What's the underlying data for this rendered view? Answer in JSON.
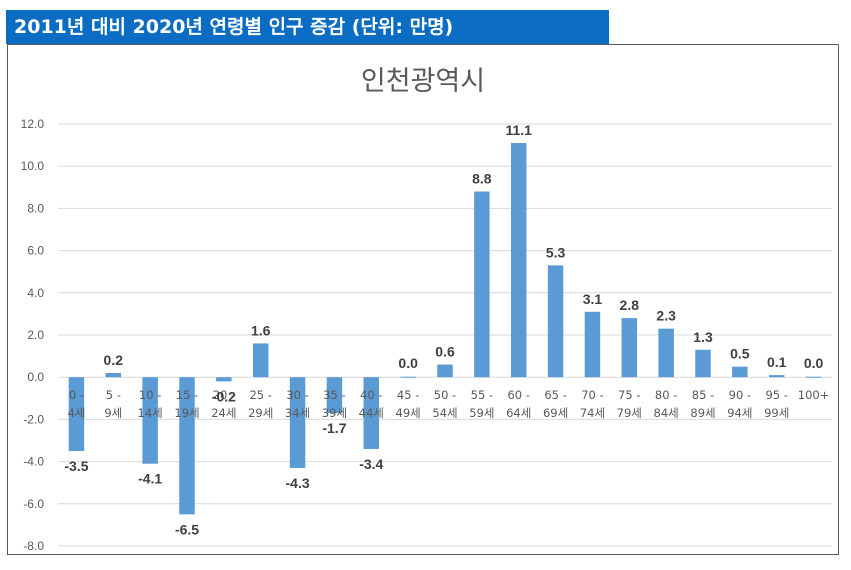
{
  "banner": {
    "title": "2011년 대비 2020년 연령별 인구 증감 (단위: 만명)"
  },
  "chart_data": {
    "type": "bar",
    "title": "인천광역시",
    "xlabel": "",
    "ylabel": "",
    "ylim": [
      -8.0,
      12.0
    ],
    "yticks": [
      "12.0",
      "10.0",
      "8.0",
      "6.0",
      "4.0",
      "2.0",
      "0.0",
      "-2.0",
      "-4.0",
      "-6.0",
      "-8.0"
    ],
    "categories": [
      [
        "0 -",
        "4세"
      ],
      [
        "5 -",
        "9세"
      ],
      [
        "10 -",
        "14세"
      ],
      [
        "15 -",
        "19세"
      ],
      [
        "20 -",
        "24세"
      ],
      [
        "25 -",
        "29세"
      ],
      [
        "30 -",
        "34세"
      ],
      [
        "35 -",
        "39세"
      ],
      [
        "40 -",
        "44세"
      ],
      [
        "45 -",
        "49세"
      ],
      [
        "50 -",
        "54세"
      ],
      [
        "55 -",
        "59세"
      ],
      [
        "60 -",
        "64세"
      ],
      [
        "65 -",
        "69세"
      ],
      [
        "70 -",
        "74세"
      ],
      [
        "75 -",
        "79세"
      ],
      [
        "80 -",
        "84세"
      ],
      [
        "85 -",
        "89세"
      ],
      [
        "90 -",
        "94세"
      ],
      [
        "95 -",
        "99세"
      ],
      [
        "100+"
      ]
    ],
    "values": [
      -3.5,
      0.2,
      -4.1,
      -6.5,
      -0.2,
      1.6,
      -4.3,
      -1.7,
      -3.4,
      0.0,
      0.6,
      8.8,
      11.1,
      5.3,
      3.1,
      2.8,
      2.3,
      1.3,
      0.5,
      0.1,
      0.0
    ],
    "data_labels": [
      "-3.5",
      "0.2",
      "-4.1",
      "-6.5",
      "-0.2",
      "1.6",
      "-4.3",
      "-1.7",
      "-3.4",
      "0.0",
      "0.6",
      "8.8",
      "11.1",
      "5.3",
      "3.1",
      "2.8",
      "2.3",
      "1.3",
      "0.5",
      "0.1",
      "0.0"
    ],
    "colors": {
      "bar": "#5b9bd5",
      "banner": "#0a6cc2"
    },
    "grid": true,
    "legend": "none"
  }
}
